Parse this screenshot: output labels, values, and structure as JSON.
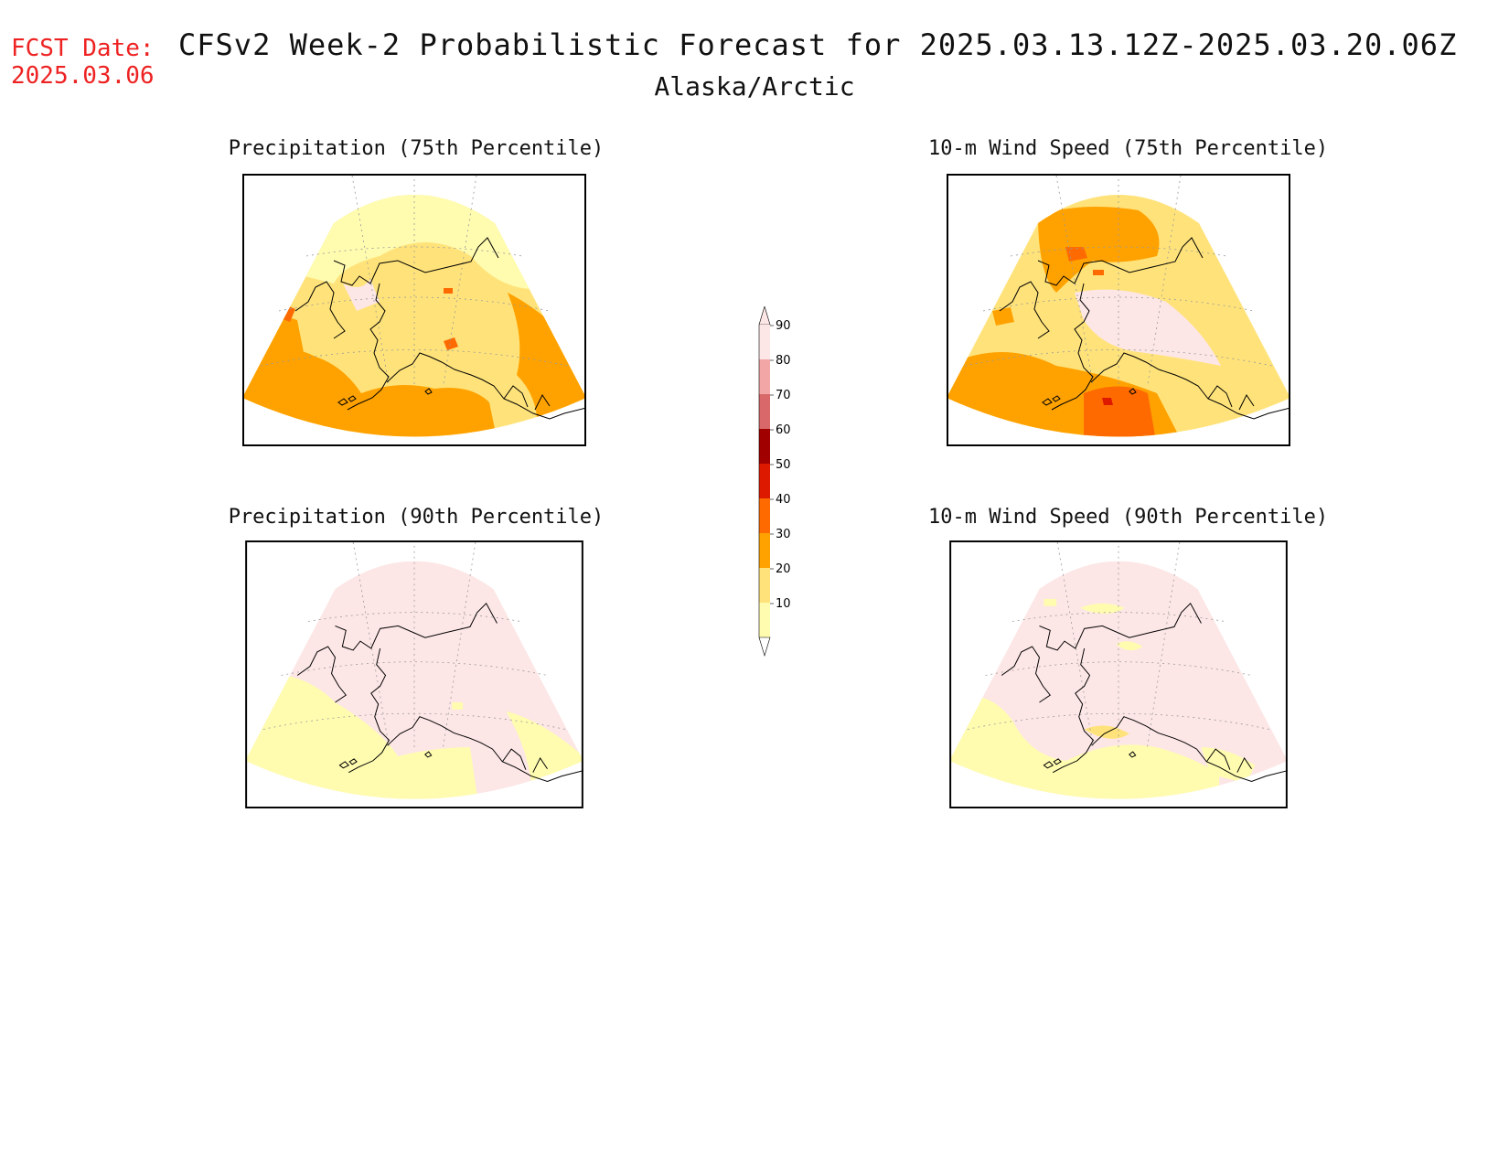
{
  "header": {
    "fcst_label": "FCST Date:",
    "fcst_date": "2025.03.06",
    "title": "CFSv2 Week-2 Probabilistic Forecast for 2025.03.13.12Z-2025.03.20.06Z",
    "region": "Alaska/Arctic"
  },
  "panels": [
    {
      "title": "Precipitation (75th Percentile)",
      "level": "high"
    },
    {
      "title": "10-m Wind Speed (75th Percentile)",
      "level": "high"
    },
    {
      "title": "Precipitation (90th Percentile)",
      "level": "low"
    },
    {
      "title": "10-m Wind Speed (90th Percentile)",
      "level": "low"
    }
  ],
  "colorbar": {
    "ticks": [
      "10",
      "20",
      "30",
      "40",
      "50",
      "60",
      "70",
      "80",
      "90"
    ],
    "colors": [
      "#fffcb0",
      "#ffe37a",
      "#ffa200",
      "#ff6a00",
      "#dd1a00",
      "#a00000",
      "#d8686a",
      "#f2a6a6",
      "#fde6e6"
    ]
  }
}
